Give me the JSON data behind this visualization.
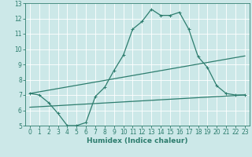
{
  "xlabel": "Humidex (Indice chaleur)",
  "bg_color": "#cce8e8",
  "grid_color": "#ffffff",
  "line_color": "#2d7d6e",
  "xlim": [
    -0.5,
    23.5
  ],
  "ylim": [
    5,
    13
  ],
  "xticks": [
    0,
    1,
    2,
    3,
    4,
    5,
    6,
    7,
    8,
    9,
    10,
    11,
    12,
    13,
    14,
    15,
    16,
    17,
    18,
    19,
    20,
    21,
    22,
    23
  ],
  "yticks": [
    5,
    6,
    7,
    8,
    9,
    10,
    11,
    12,
    13
  ],
  "curve1_x": [
    0,
    1,
    2,
    3,
    4,
    5,
    6,
    7,
    8,
    9,
    10,
    11,
    12,
    13,
    14,
    15,
    16,
    17,
    18,
    19,
    20,
    21,
    22,
    23
  ],
  "curve1_y": [
    7.1,
    7.0,
    6.5,
    5.8,
    5.0,
    5.0,
    5.2,
    6.9,
    7.5,
    8.6,
    9.6,
    11.3,
    11.8,
    12.6,
    12.2,
    12.2,
    12.4,
    11.3,
    9.5,
    8.8,
    7.6,
    7.1,
    7.0,
    7.0
  ],
  "line2_x": [
    0,
    23
  ],
  "line2_y": [
    7.1,
    9.55
  ],
  "line3_x": [
    0,
    23
  ],
  "line3_y": [
    6.2,
    7.0
  ],
  "line_width": 0.9,
  "marker_size": 2.5,
  "tick_fontsize": 5.5,
  "xlabel_fontsize": 6.5
}
